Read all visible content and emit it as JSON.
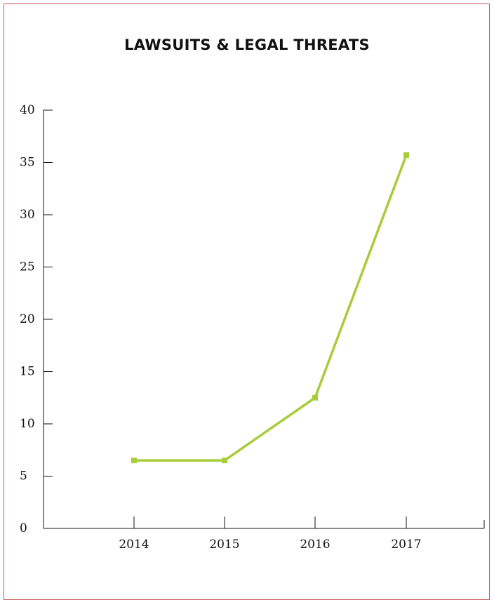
{
  "chart_data": {
    "type": "line",
    "title": "LAWSUITS & LEGAL THREATS",
    "xlabel": "",
    "ylabel": "",
    "categories": [
      "2014",
      "2015",
      "2016",
      "2017"
    ],
    "series": [
      {
        "values": [
          6.5,
          6.5,
          12.5,
          35.7
        ]
      }
    ],
    "ylim": [
      0,
      40
    ],
    "yticks": [
      0,
      5,
      10,
      15,
      20,
      25,
      30,
      35,
      40
    ],
    "grid": false,
    "line_color": "#a8cc3a",
    "frame_color": "#c8585a"
  }
}
